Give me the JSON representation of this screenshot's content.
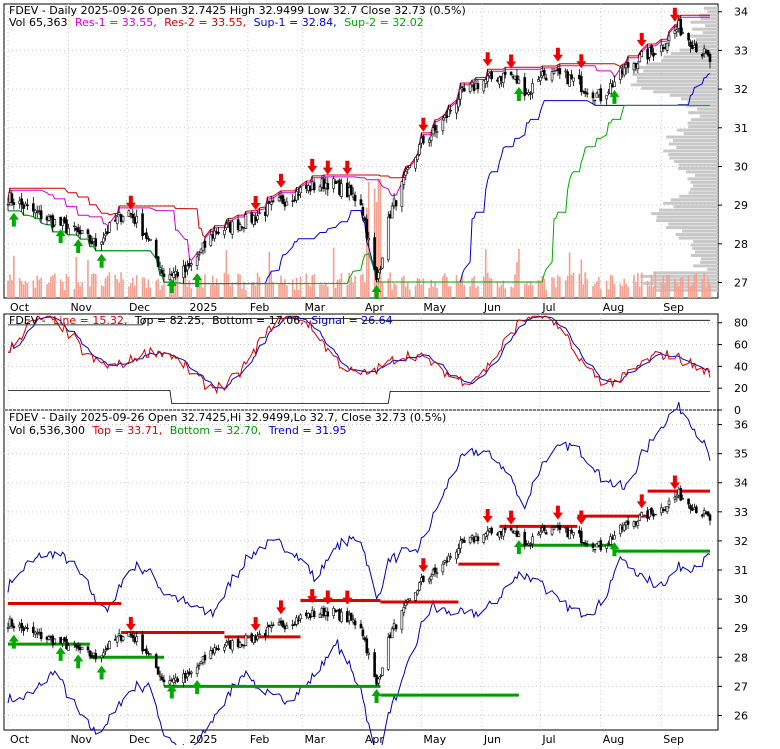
{
  "panel1": {
    "header_line1": "FDEV - Daily 2025-09-26 Open 32.7425  High 32.9499  Low 32.7  Close 32.73 (0.5%)",
    "header_line2_vol": "Vol 65,363",
    "res1_label": "Res-1 = 33.55,",
    "res2_label": "Res-2 = 33.55,",
    "sup1_label": "Sup-1 = 32.84,",
    "sup2_label": "Sup-2 = 32.02"
  },
  "panel2": {
    "header_prefix": "FDEV -",
    "line_label": "Line = 15.32,",
    "top_label": "Top = 82.25,",
    "bottom_label": "Bottom = 17.06,",
    "signal_label": "Signal = 26.64"
  },
  "panel3": {
    "header_line1": "FDEV - Daily 2025-09-26 Open 32.7425,Hi 32.9499,Lo 32.7,  Close 32.73 (0.5%)",
    "vol_label": "Vol 6,536,300",
    "top_label": "Top = 33.71,",
    "bottom_label": "Bottom = 32.70,",
    "trend_label": "Trend = 31.95"
  },
  "x_months": [
    "Oct",
    "Nov",
    "Dec",
    "2025",
    "Feb",
    "Mar",
    "Apr",
    "May",
    "Jun",
    "Jul",
    "Aug",
    "Sep"
  ],
  "colors": {
    "res1": "#cc00cc",
    "res2": "#cc0000",
    "sup1": "#0000cc",
    "sup2": "#00aa00",
    "macd_line": "#cc0000",
    "macd_signal": "#0000cc",
    "top_line": "#dd0000",
    "bottom_line": "#009900",
    "band": "#0000aa",
    "volume": "#f4a090",
    "profile": "#c8c8c8",
    "arrow_up": "#00aa00",
    "arrow_down": "#ee0000"
  },
  "chart_data": [
    {
      "type": "candlestick",
      "x_range": [
        "2024-10-01",
        "2025-09-26"
      ],
      "ylim": [
        26.6,
        34.2
      ],
      "y_ticks": [
        27,
        28,
        29,
        30,
        31,
        32,
        33,
        34
      ],
      "close_series": [
        [
          "2024-10-01",
          29.2
        ],
        [
          "2024-10-15",
          28.8
        ],
        [
          "2024-11-01",
          28.4
        ],
        [
          "2024-11-15",
          28.0
        ],
        [
          "2024-12-01",
          28.9
        ],
        [
          "2024-12-10",
          28.3
        ],
        [
          "2024-12-20",
          27.2
        ],
        [
          "2025-01-01",
          27.3
        ],
        [
          "2025-01-15",
          28.3
        ],
        [
          "2025-02-01",
          28.6
        ],
        [
          "2025-02-15",
          29.0
        ],
        [
          "2025-03-01",
          29.4
        ],
        [
          "2025-03-15",
          29.6
        ],
        [
          "2025-03-31",
          29.1
        ],
        [
          "2025-04-08",
          27.0
        ],
        [
          "2025-04-15",
          28.8
        ],
        [
          "2025-05-01",
          30.6
        ],
        [
          "2025-05-10",
          31.0
        ],
        [
          "2025-05-20",
          31.8
        ],
        [
          "2025-06-01",
          32.2
        ],
        [
          "2025-06-15",
          32.4
        ],
        [
          "2025-06-25",
          31.9
        ],
        [
          "2025-07-01",
          32.4
        ],
        [
          "2025-07-15",
          32.3
        ],
        [
          "2025-08-01",
          31.8
        ],
        [
          "2025-08-15",
          32.6
        ],
        [
          "2025-09-01",
          33.1
        ],
        [
          "2025-09-10",
          33.6
        ],
        [
          "2025-09-26",
          32.73
        ]
      ],
      "resistance_1": 33.55,
      "resistance_2": 33.55,
      "support_1": 32.84,
      "support_2": 32.02,
      "volume": 65363
    },
    {
      "type": "line",
      "ylim": [
        0,
        88
      ],
      "y_ticks": [
        0,
        20,
        40,
        60,
        80
      ],
      "line": 15.32,
      "top": 82.25,
      "bottom": 17.06,
      "signal": 26.64
    },
    {
      "type": "candlestick",
      "ylim": [
        25.5,
        36.5
      ],
      "y_ticks": [
        26,
        27,
        28,
        29,
        30,
        31,
        32,
        33,
        34,
        35,
        36
      ],
      "top": 33.71,
      "bottom": 32.7,
      "trend": 31.95,
      "volume": 6536300
    }
  ]
}
